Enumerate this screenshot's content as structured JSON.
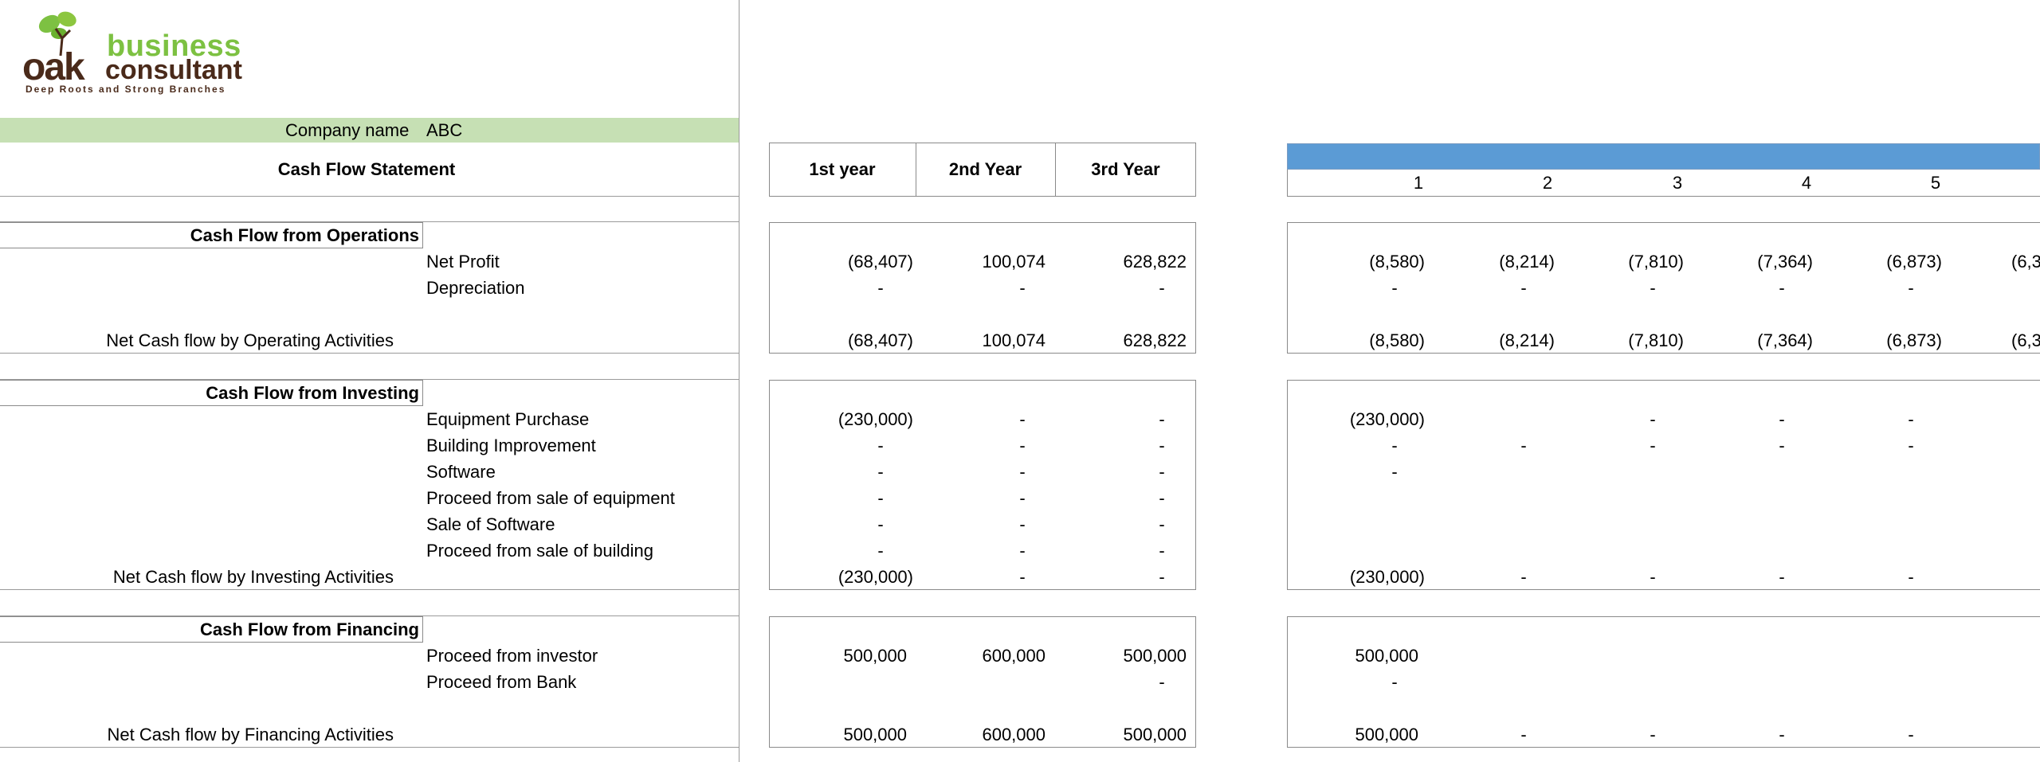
{
  "logo": {
    "word1": "oak",
    "word2": "business",
    "word3": "consultant",
    "tagline": "Deep Roots and Strong Branches",
    "color_green": "#7dc142",
    "color_brown": "#4a2a1a"
  },
  "company": {
    "label": "Company name",
    "value": "ABC"
  },
  "statement_title": "Cash Flow Statement",
  "year_headers": [
    "1st year",
    "2nd Year",
    "3rd Year"
  ],
  "month_numbers": [
    "1",
    "2",
    "3",
    "4",
    "5"
  ],
  "operations": {
    "title": "Cash Flow from Operations",
    "rows": [
      {
        "label": "Net Profit",
        "years": [
          "(68,407)",
          "100,074",
          "628,822"
        ],
        "months": [
          "(8,580)",
          "(8,214)",
          "(7,810)",
          "(7,364)",
          "(6,873)"
        ],
        "overflow": "(6,3"
      },
      {
        "label": "Depreciation",
        "years": [
          "-",
          "-",
          "-"
        ],
        "months": [
          "-",
          "-",
          "-",
          "-",
          "-"
        ],
        "overflow": ""
      }
    ],
    "net_label": "Net Cash flow by Operating Activities",
    "net_years": [
      "(68,407)",
      "100,074",
      "628,822"
    ],
    "net_months": [
      "(8,580)",
      "(8,214)",
      "(7,810)",
      "(7,364)",
      "(6,873)"
    ],
    "net_overflow": "(6,3"
  },
  "investing": {
    "title": "Cash Flow from Investing",
    "rows": [
      {
        "label": "Equipment Purchase",
        "years": [
          "(230,000)",
          "-",
          "-"
        ],
        "months": [
          "(230,000)",
          "",
          "-",
          "-",
          "-"
        ]
      },
      {
        "label": "Building Improvement",
        "years": [
          "-",
          "-",
          "-"
        ],
        "months": [
          "-",
          "-",
          "-",
          "-",
          "-"
        ]
      },
      {
        "label": "Software",
        "years": [
          "-",
          "-",
          "-"
        ],
        "months": [
          "-",
          "",
          "",
          "",
          ""
        ]
      },
      {
        "label": "Proceed from sale of equipment",
        "years": [
          "-",
          "-",
          "-"
        ],
        "months": [
          "",
          "",
          "",
          "",
          ""
        ]
      },
      {
        "label": "Sale of Software",
        "years": [
          "-",
          "-",
          "-"
        ],
        "months": [
          "",
          "",
          "",
          "",
          ""
        ]
      },
      {
        "label": "Proceed from sale of building",
        "years": [
          "-",
          "-",
          "-"
        ],
        "months": [
          "",
          "",
          "",
          "",
          ""
        ]
      }
    ],
    "net_label": "Net Cash flow by Investing Activities",
    "net_years": [
      "(230,000)",
      "-",
      "-"
    ],
    "net_months": [
      "(230,000)",
      "-",
      "-",
      "-",
      "-"
    ]
  },
  "financing": {
    "title": "Cash Flow from Financing",
    "rows": [
      {
        "label": "Proceed from investor",
        "years": [
          "500,000",
          "600,000",
          "500,000"
        ],
        "months": [
          "500,000",
          "",
          "",
          "",
          ""
        ]
      },
      {
        "label": "Proceed from Bank",
        "years": [
          "",
          "",
          "-"
        ],
        "months": [
          "-",
          "",
          "",
          "",
          ""
        ]
      }
    ],
    "net_label": "Net Cash flow by Financing Activities",
    "net_years": [
      "500,000",
      "600,000",
      "500,000"
    ],
    "net_months": [
      "500,000",
      "-",
      "-",
      "-",
      "-"
    ]
  },
  "colors": {
    "company_band": "#c6e0b4",
    "month_header_band": "#5b9bd5"
  }
}
